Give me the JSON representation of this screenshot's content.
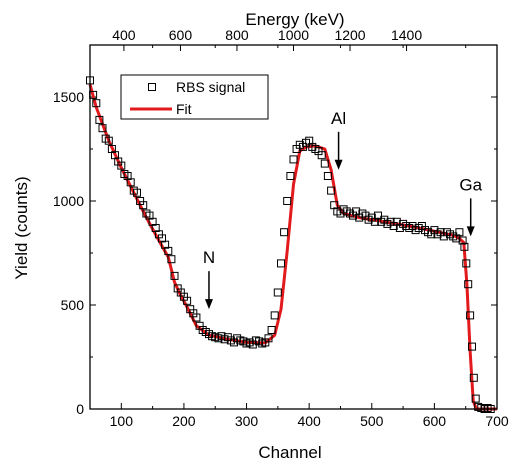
{
  "chart_data": {
    "type": "scatter",
    "xlabel": "Channel",
    "x2label": "Energy (keV)",
    "ylabel": "Yield (counts)",
    "xlim": [
      50,
      700
    ],
    "ylim": [
      0,
      1750
    ],
    "x_ticks": [
      "100",
      "200",
      "300",
      "400",
      "500",
      "600",
      "700"
    ],
    "y_ticks": [
      "0",
      "500",
      "1000",
      "1500"
    ],
    "x2_ticks": [
      {
        "channel": 90,
        "label": "400"
      },
      {
        "channel": 240,
        "label": "600"
      },
      {
        "channel": 390,
        "label": "800"
      },
      {
        "channel": 540,
        "label": "1000"
      },
      {
        "channel": 690,
        "label": "1200"
      },
      {
        "channel": 840,
        "label": "1400"
      }
    ],
    "legend": {
      "position": "top-left",
      "entries": [
        "RBS signal",
        "Fit"
      ]
    },
    "colors": {
      "fit": "#e31a1c",
      "signal": "#000000"
    },
    "series": [
      {
        "name": "Fit",
        "style": "line",
        "x": [
          50,
          60,
          80,
          100,
          120,
          140,
          160,
          175,
          185,
          195,
          205,
          220,
          240,
          270,
          300,
          330,
          345,
          355,
          365,
          375,
          385,
          395,
          410,
          425,
          435,
          445,
          455,
          480,
          520,
          560,
          600,
          630,
          640,
          647,
          652,
          657,
          662,
          667,
          675,
          700
        ],
        "y": [
          1560,
          1450,
          1290,
          1160,
          1040,
          920,
          810,
          730,
          610,
          545,
          490,
          400,
          355,
          335,
          320,
          318,
          355,
          480,
          760,
          1080,
          1240,
          1260,
          1265,
          1250,
          1150,
          980,
          940,
          920,
          900,
          880,
          855,
          835,
          820,
          800,
          600,
          280,
          40,
          0,
          0,
          0
        ]
      },
      {
        "name": "RBS signal",
        "style": "scatter",
        "x": [
          50,
          55,
          60,
          65,
          70,
          75,
          80,
          85,
          90,
          95,
          100,
          105,
          110,
          115,
          120,
          125,
          130,
          135,
          140,
          145,
          150,
          155,
          160,
          165,
          170,
          175,
          180,
          185,
          190,
          195,
          200,
          205,
          210,
          215,
          220,
          225,
          230,
          235,
          240,
          245,
          250,
          255,
          260,
          265,
          270,
          275,
          280,
          285,
          290,
          295,
          300,
          305,
          310,
          315,
          320,
          325,
          330,
          335,
          340,
          345,
          350,
          355,
          360,
          365,
          370,
          375,
          380,
          385,
          390,
          395,
          400,
          405,
          410,
          415,
          420,
          425,
          430,
          435,
          440,
          445,
          450,
          455,
          460,
          465,
          470,
          475,
          480,
          485,
          490,
          495,
          500,
          505,
          510,
          515,
          520,
          525,
          530,
          535,
          540,
          545,
          550,
          555,
          560,
          565,
          570,
          575,
          580,
          585,
          590,
          595,
          600,
          605,
          610,
          615,
          620,
          625,
          630,
          635,
          640,
          645,
          648,
          651,
          654,
          657,
          660,
          663,
          666,
          670,
          675,
          680,
          685,
          690
        ],
        "y": [
          1580,
          1510,
          1470,
          1390,
          1350,
          1300,
          1290,
          1250,
          1220,
          1190,
          1170,
          1130,
          1120,
          1090,
          1050,
          1040,
          1000,
          980,
          940,
          930,
          900,
          870,
          840,
          820,
          790,
          760,
          720,
          640,
          580,
          560,
          540,
          520,
          480,
          460,
          440,
          400,
          380,
          370,
          360,
          350,
          345,
          340,
          350,
          335,
          345,
          330,
          320,
          340,
          330,
          325,
          315,
          320,
          310,
          330,
          325,
          315,
          320,
          340,
          380,
          450,
          560,
          700,
          850,
          1000,
          1120,
          1200,
          1250,
          1270,
          1260,
          1280,
          1290,
          1260,
          1250,
          1240,
          1220,
          1180,
          1120,
          1050,
          980,
          950,
          940,
          960,
          950,
          940,
          930,
          950,
          920,
          940,
          930,
          910,
          920,
          900,
          930,
          900,
          910,
          890,
          900,
          880,
          900,
          870,
          890,
          880,
          870,
          880,
          860,
          870,
          880,
          860,
          850,
          840,
          860,
          840,
          850,
          830,
          850,
          840,
          830,
          820,
          850,
          810,
          780,
          700,
          600,
          450,
          300,
          150,
          50,
          10,
          5,
          0,
          5,
          0
        ]
      }
    ],
    "annotations": [
      {
        "label": "N",
        "x": 240,
        "arrow_tip_y": 480
      },
      {
        "label": "Al",
        "x": 447,
        "arrow_tip_y": 1150
      },
      {
        "label": "Ga",
        "x": 658,
        "arrow_tip_y": 830
      }
    ]
  }
}
